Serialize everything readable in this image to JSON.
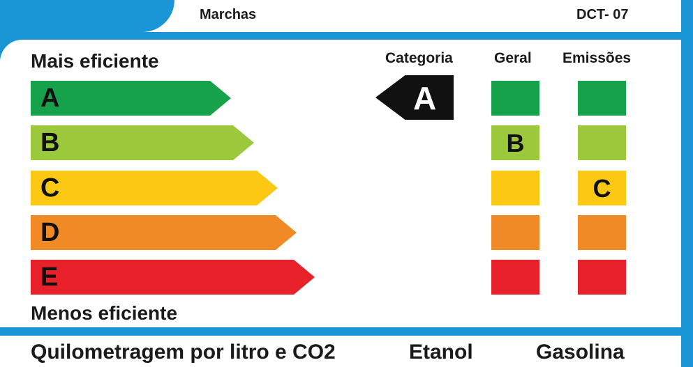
{
  "header": {
    "marchas_label": "Marchas",
    "model_code": "DCT- 07"
  },
  "scale": {
    "top_label": "Mais eficiente",
    "bottom_label": "Menos eficiente",
    "bars": [
      {
        "letter": "A",
        "color": "#16a24a"
      },
      {
        "letter": "B",
        "color": "#9cc93b"
      },
      {
        "letter": "C",
        "color": "#fbc813"
      },
      {
        "letter": "D",
        "color": "#f08a24"
      },
      {
        "letter": "E",
        "color": "#e8202a"
      }
    ]
  },
  "columns": {
    "categoria": {
      "header": "Categoria",
      "value": "A"
    },
    "geral": {
      "header": "Geral",
      "value": "B"
    },
    "emissoes": {
      "header": "Emissões",
      "value": "C"
    }
  },
  "footer": {
    "label": "Quilometragem por litro e CO2",
    "etanol": "Etanol",
    "gasolina": "Gasolina"
  },
  "colors": {
    "frame": "#1a96d6",
    "category_arrow": "#111111"
  }
}
